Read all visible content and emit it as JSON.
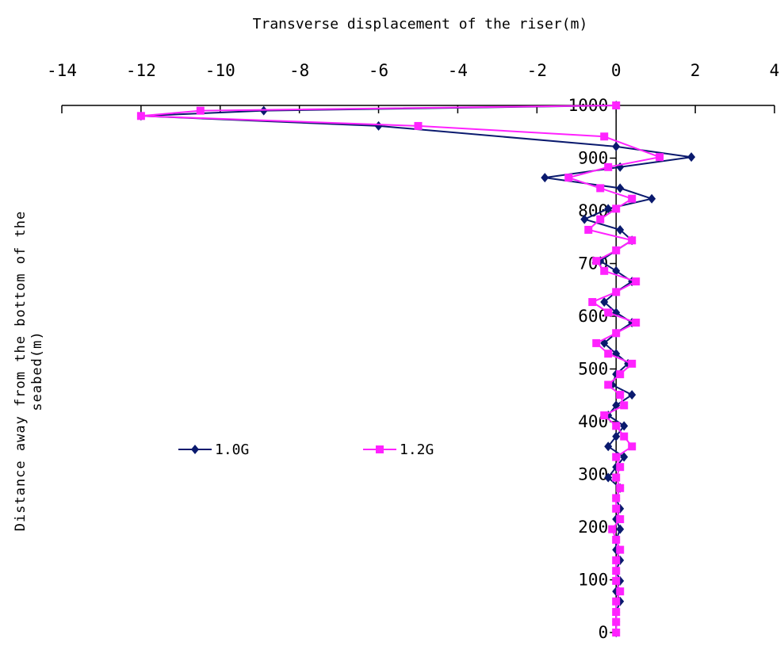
{
  "chart_data": {
    "type": "line",
    "title": "Transverse displacement of the riser(m)",
    "xlabel": "Transverse displacement of the riser(m)",
    "ylabel": "Distance away from the bottom of the seabed(m)",
    "ylabel_lines": [
      "Distance  away  from  the   bottom  of   the",
      "seabed(m)"
    ],
    "xlim": [
      -14,
      4
    ],
    "ylim": [
      0,
      1000
    ],
    "x_ticks": [
      -14,
      -12,
      -10,
      -8,
      -6,
      -4,
      -2,
      0,
      2,
      4
    ],
    "x_tick_labels": [
      "-14",
      "-12",
      "-10",
      "-8",
      "-6",
      "-4",
      "-2",
      "0",
      "2",
      "4"
    ],
    "y_ticks": [
      0,
      100,
      200,
      300,
      400,
      500,
      600,
      700,
      800,
      900,
      1000
    ],
    "y_tick_labels": [
      "0",
      "100",
      "200",
      "300",
      "400",
      "500",
      "600",
      "700",
      "800",
      "900",
      "1000"
    ],
    "x_axis_position": "top",
    "grid": false,
    "legend_position": "middle-left",
    "series": [
      {
        "name": "1.0G",
        "color": "#0a1a6e",
        "marker": "diamond",
        "points": [
          [
            0,
            1000
          ],
          [
            -8.9,
            990
          ],
          [
            -12,
            980
          ],
          [
            -6,
            961
          ],
          [
            0,
            922
          ],
          [
            1.9,
            902
          ],
          [
            0.1,
            883
          ],
          [
            -1.8,
            863
          ],
          [
            0.1,
            843
          ],
          [
            0.9,
            823
          ],
          [
            -0.2,
            804
          ],
          [
            -0.8,
            784
          ],
          [
            0.1,
            764
          ],
          [
            0.4,
            744
          ],
          [
            0.0,
            725
          ],
          [
            -0.4,
            705
          ],
          [
            0.0,
            686
          ],
          [
            0.4,
            666
          ],
          [
            0.0,
            646
          ],
          [
            -0.3,
            627
          ],
          [
            0.0,
            607
          ],
          [
            0.4,
            588
          ],
          [
            0.0,
            568
          ],
          [
            -0.3,
            549
          ],
          [
            0.0,
            529
          ],
          [
            0.3,
            510
          ],
          [
            0.0,
            490
          ],
          [
            -0.1,
            470
          ],
          [
            0.4,
            451
          ],
          [
            0.0,
            431
          ],
          [
            -0.2,
            412
          ],
          [
            0.2,
            392
          ],
          [
            0.0,
            372
          ],
          [
            -0.2,
            353
          ],
          [
            0.2,
            333
          ],
          [
            0.0,
            314
          ],
          [
            -0.2,
            294
          ],
          [
            0.1,
            274
          ],
          [
            0.0,
            255
          ],
          [
            0.1,
            235
          ],
          [
            0.0,
            215
          ],
          [
            0.1,
            196
          ],
          [
            0.0,
            176
          ],
          [
            0.0,
            157
          ],
          [
            0.1,
            137
          ],
          [
            0.0,
            117
          ],
          [
            0.1,
            98
          ],
          [
            0.0,
            78
          ],
          [
            0.1,
            59
          ],
          [
            0.0,
            39
          ],
          [
            0.0,
            20
          ],
          [
            0.0,
            0
          ]
        ]
      },
      {
        "name": "1.2G",
        "color": "#ff22ff",
        "marker": "square",
        "points": [
          [
            0,
            1000
          ],
          [
            -10.5,
            990
          ],
          [
            -12,
            980
          ],
          [
            -5,
            961
          ],
          [
            -0.3,
            941
          ],
          [
            1.1,
            902
          ],
          [
            -0.2,
            883
          ],
          [
            -1.2,
            863
          ],
          [
            -0.4,
            843
          ],
          [
            0.4,
            823
          ],
          [
            0.0,
            804
          ],
          [
            -0.4,
            784
          ],
          [
            -0.7,
            764
          ],
          [
            0.4,
            744
          ],
          [
            0.0,
            725
          ],
          [
            -0.5,
            705
          ],
          [
            -0.3,
            686
          ],
          [
            0.5,
            666
          ],
          [
            0.0,
            646
          ],
          [
            -0.6,
            627
          ],
          [
            -0.2,
            607
          ],
          [
            0.5,
            588
          ],
          [
            0.0,
            568
          ],
          [
            -0.5,
            549
          ],
          [
            -0.2,
            529
          ],
          [
            0.4,
            510
          ],
          [
            0.1,
            490
          ],
          [
            -0.2,
            470
          ],
          [
            0.1,
            451
          ],
          [
            0.2,
            431
          ],
          [
            -0.3,
            412
          ],
          [
            0.0,
            392
          ],
          [
            0.2,
            372
          ],
          [
            0.4,
            353
          ],
          [
            0.0,
            333
          ],
          [
            0.1,
            314
          ],
          [
            0.0,
            294
          ],
          [
            0.1,
            274
          ],
          [
            0.0,
            255
          ],
          [
            0.0,
            235
          ],
          [
            0.1,
            215
          ],
          [
            -0.1,
            196
          ],
          [
            0.0,
            176
          ],
          [
            0.1,
            157
          ],
          [
            0.0,
            137
          ],
          [
            0.0,
            117
          ],
          [
            0.0,
            98
          ],
          [
            0.1,
            78
          ],
          [
            0.0,
            59
          ],
          [
            0.0,
            39
          ],
          [
            0.0,
            20
          ],
          [
            0.0,
            0
          ]
        ]
      }
    ]
  }
}
